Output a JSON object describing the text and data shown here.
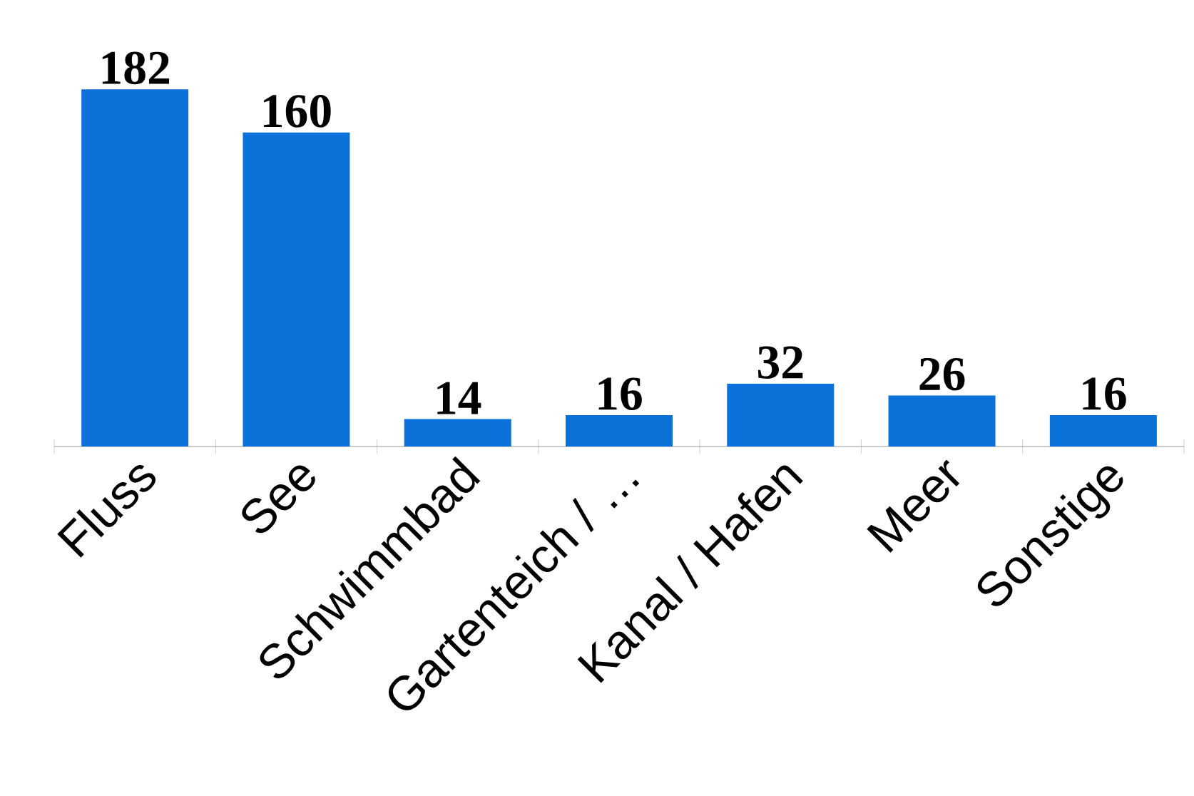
{
  "chart_data": {
    "type": "bar",
    "categories": [
      "Fluss",
      "See",
      "Schwimmbad",
      "Gartenteich / …",
      "Kanal / Hafen",
      "Meer",
      "Sonstige"
    ],
    "values": [
      182,
      160,
      14,
      16,
      32,
      26,
      16
    ],
    "color": "#0a72d8",
    "data_labels": true
  }
}
